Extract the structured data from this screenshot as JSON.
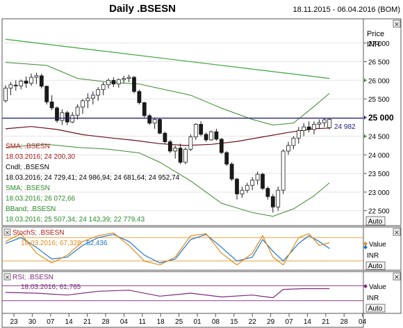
{
  "header": {
    "title": "Daily .BSESN",
    "date_range": "18.11.2015 - 06.04.2016 (BOM)"
  },
  "price_panel": {
    "axis_title": "Price",
    "axis_unit": "INR",
    "auto_label": "Auto",
    "current_price_label": "24 982",
    "highlight_tick": "25 000",
    "labels": {
      "sma1_name": "SMA; .BSESN",
      "sma1_values": "18.03.2016; 24 200,30",
      "candle_name": "Cndl; .BSESN",
      "candle_values": "18.03.2016; 24 729,41; 24 986,94; 24 681,64; 24 952,74",
      "sma2_name": "SMA; .BSESN",
      "sma2_values": "18.03.2016; 26 072,66",
      "bband_name": "BBand; .BSESN",
      "bband_values": "18.03.2016; 25 507,34; 24 143,39; 22 779,43"
    }
  },
  "stoch_panel": {
    "name": "StochS; .BSESN",
    "date": "18.03.2016;",
    "value1": "67,328;",
    "value2": "52,436",
    "axis_title": "Value",
    "axis_unit": "INR",
    "auto_label": "Auto"
  },
  "rsi_panel": {
    "name": "RSI; .BSESN",
    "values": "18.03.2016; 61,765",
    "axis_title": "Value",
    "axis_unit": "INR",
    "auto_label": "Auto"
  },
  "colors": {
    "candle": "#1a1a1a",
    "sma_short": "#6b0f1a",
    "sma_long": "#3aa53a",
    "bband": "#3a8a2a",
    "current_line": "#1c1c7a",
    "stoch_k": "#e08a1e",
    "stoch_d": "#1e78c8",
    "stoch_level": "#e8a33c",
    "rsi": "#7a2a7a",
    "rsi_level": "#8a3a8a",
    "label_red": "#b01818",
    "label_green": "#2a8a2a"
  },
  "chart_data": {
    "type": "candlestick",
    "y_ticks": [
      22500,
      23000,
      23500,
      24000,
      24500,
      25000,
      25500,
      26000,
      26500,
      27000
    ],
    "x_tick_labels": [
      "23",
      "30",
      "07",
      "14",
      "21",
      "28",
      "04",
      "11",
      "18",
      "25",
      "01",
      "08",
      "15",
      "22",
      "29",
      "07",
      "14",
      "21",
      "28",
      "04"
    ],
    "candles": [
      [
        25450,
        25870,
        25400,
        25790
      ],
      [
        25790,
        25950,
        25600,
        25880
      ],
      [
        25870,
        26000,
        25720,
        25850
      ],
      [
        25850,
        26020,
        25760,
        25980
      ],
      [
        25980,
        26100,
        25800,
        25920
      ],
      [
        25920,
        26180,
        25850,
        26080
      ],
      [
        26080,
        26200,
        25900,
        26120
      ],
      [
        26120,
        26180,
        25780,
        25840
      ],
      [
        25840,
        25860,
        25350,
        25420
      ],
      [
        25420,
        25600,
        25200,
        25260
      ],
      [
        25260,
        25300,
        24860,
        24920
      ],
      [
        24920,
        25220,
        24800,
        25130
      ],
      [
        25130,
        25180,
        24800,
        24880
      ],
      [
        24880,
        25150,
        24850,
        25060
      ],
      [
        25060,
        25360,
        24950,
        25280
      ],
      [
        25280,
        25500,
        25100,
        25450
      ],
      [
        25450,
        25650,
        25250,
        25520
      ],
      [
        25520,
        25700,
        25350,
        25600
      ],
      [
        25600,
        25820,
        25450,
        25750
      ],
      [
        25750,
        25950,
        25600,
        25880
      ],
      [
        25880,
        26050,
        25780,
        26000
      ],
      [
        26000,
        26080,
        25820,
        25900
      ],
      [
        25900,
        26050,
        25800,
        26020
      ],
      [
        26020,
        26120,
        25920,
        26050
      ],
      [
        26050,
        26150,
        25950,
        26080
      ],
      [
        26080,
        26120,
        25650,
        25700
      ],
      [
        25700,
        25750,
        25350,
        25400
      ],
      [
        25400,
        25420,
        25000,
        25050
      ],
      [
        25050,
        25100,
        24800,
        24850
      ],
      [
        24850,
        25000,
        24700,
        24950
      ],
      [
        24950,
        24980,
        24550,
        24580
      ],
      [
        24580,
        24620,
        24300,
        24350
      ],
      [
        24350,
        24400,
        24050,
        24100
      ],
      [
        24100,
        24250,
        23900,
        24180
      ],
      [
        24180,
        24300,
        23750,
        23800
      ],
      [
        23800,
        24200,
        23750,
        24150
      ],
      [
        24150,
        24550,
        24100,
        24480
      ],
      [
        24480,
        24850,
        24400,
        24820
      ],
      [
        24820,
        24900,
        24500,
        24550
      ],
      [
        24550,
        24600,
        24350,
        24400
      ],
      [
        24400,
        24650,
        24380,
        24620
      ],
      [
        24620,
        24700,
        24380,
        24420
      ],
      [
        24420,
        24450,
        24020,
        24060
      ],
      [
        24060,
        24100,
        23700,
        23750
      ],
      [
        23750,
        23800,
        23300,
        23350
      ],
      [
        23350,
        23380,
        22800,
        22950
      ],
      [
        22950,
        23150,
        22850,
        23050
      ],
      [
        23050,
        23250,
        22980,
        23180
      ],
      [
        23180,
        23400,
        23050,
        23320
      ],
      [
        23320,
        23550,
        23200,
        23480
      ],
      [
        23480,
        23520,
        23050,
        23100
      ],
      [
        23100,
        23150,
        22800,
        22880
      ],
      [
        22880,
        22950,
        22450,
        22600
      ],
      [
        22600,
        23150,
        22500,
        23050
      ],
      [
        23050,
        24150,
        22950,
        24100
      ],
      [
        24100,
        24350,
        24000,
        24250
      ],
      [
        24250,
        24500,
        24150,
        24450
      ],
      [
        24450,
        24750,
        24300,
        24650
      ],
      [
        24650,
        24850,
        24500,
        24750
      ],
      [
        24750,
        24900,
        24600,
        24680
      ],
      [
        24680,
        24900,
        24550,
        24820
      ],
      [
        24820,
        24950,
        24700,
        24860
      ],
      [
        24860,
        24990,
        24750,
        24940
      ],
      [
        24729.41,
        24986.94,
        24681.64,
        24952.74
      ]
    ],
    "sma_short": [
      [
        0,
        24700
      ],
      [
        5,
        24760
      ],
      [
        10,
        24680
      ],
      [
        15,
        24540
      ],
      [
        20,
        24460
      ],
      [
        25,
        24390
      ],
      [
        30,
        24300
      ],
      [
        35,
        24250
      ],
      [
        40,
        24280
      ],
      [
        45,
        24360
      ],
      [
        50,
        24480
      ],
      [
        55,
        24600
      ],
      [
        60,
        24700
      ],
      [
        63,
        24720
      ]
    ],
    "sma_long": [
      [
        0,
        27100
      ],
      [
        63,
        26050
      ]
    ],
    "bband_upper": [
      [
        0,
        26480
      ],
      [
        8,
        26400
      ],
      [
        14,
        26050
      ],
      [
        20,
        25950
      ],
      [
        26,
        25900
      ],
      [
        30,
        25780
      ],
      [
        36,
        25600
      ],
      [
        42,
        25250
      ],
      [
        48,
        24950
      ],
      [
        52,
        24800
      ],
      [
        56,
        24850
      ],
      [
        60,
        25300
      ],
      [
        63,
        25650
      ]
    ],
    "bband_lower": [
      [
        0,
        24200
      ],
      [
        8,
        24280
      ],
      [
        14,
        24200
      ],
      [
        20,
        24150
      ],
      [
        26,
        24050
      ],
      [
        30,
        23800
      ],
      [
        36,
        23300
      ],
      [
        42,
        22700
      ],
      [
        48,
        22450
      ],
      [
        52,
        22350
      ],
      [
        56,
        22550
      ],
      [
        60,
        22900
      ],
      [
        63,
        23250
      ]
    ],
    "current_price": 24982,
    "stoch_k": [
      [
        0,
        0.7
      ],
      [
        3,
        0.9
      ],
      [
        6,
        0.4
      ],
      [
        9,
        0.15
      ],
      [
        12,
        0.35
      ],
      [
        15,
        0.7
      ],
      [
        18,
        0.85
      ],
      [
        21,
        0.92
      ],
      [
        24,
        0.6
      ],
      [
        27,
        0.2
      ],
      [
        30,
        0.1
      ],
      [
        33,
        0.3
      ],
      [
        36,
        0.85
      ],
      [
        39,
        0.9
      ],
      [
        42,
        0.4
      ],
      [
        45,
        0.1
      ],
      [
        48,
        0.4
      ],
      [
        50,
        0.85
      ],
      [
        52,
        0.3
      ],
      [
        54,
        0.1
      ],
      [
        57,
        0.8
      ],
      [
        59,
        0.9
      ],
      [
        61,
        0.6
      ],
      [
        63,
        0.67
      ]
    ],
    "stoch_d": [
      [
        0,
        0.65
      ],
      [
        3,
        0.8
      ],
      [
        6,
        0.55
      ],
      [
        9,
        0.25
      ],
      [
        12,
        0.3
      ],
      [
        15,
        0.6
      ],
      [
        18,
        0.8
      ],
      [
        21,
        0.88
      ],
      [
        24,
        0.7
      ],
      [
        27,
        0.35
      ],
      [
        30,
        0.15
      ],
      [
        33,
        0.25
      ],
      [
        36,
        0.75
      ],
      [
        39,
        0.88
      ],
      [
        42,
        0.55
      ],
      [
        45,
        0.2
      ],
      [
        48,
        0.3
      ],
      [
        50,
        0.75
      ],
      [
        52,
        0.45
      ],
      [
        54,
        0.2
      ],
      [
        57,
        0.65
      ],
      [
        59,
        0.85
      ],
      [
        61,
        0.7
      ],
      [
        63,
        0.52
      ]
    ],
    "rsi": [
      [
        0,
        0.52
      ],
      [
        6,
        0.5
      ],
      [
        12,
        0.45
      ],
      [
        18,
        0.55
      ],
      [
        24,
        0.58
      ],
      [
        30,
        0.42
      ],
      [
        36,
        0.5
      ],
      [
        42,
        0.4
      ],
      [
        48,
        0.45
      ],
      [
        52,
        0.38
      ],
      [
        54,
        0.6
      ],
      [
        58,
        0.62
      ],
      [
        63,
        0.62
      ]
    ]
  }
}
